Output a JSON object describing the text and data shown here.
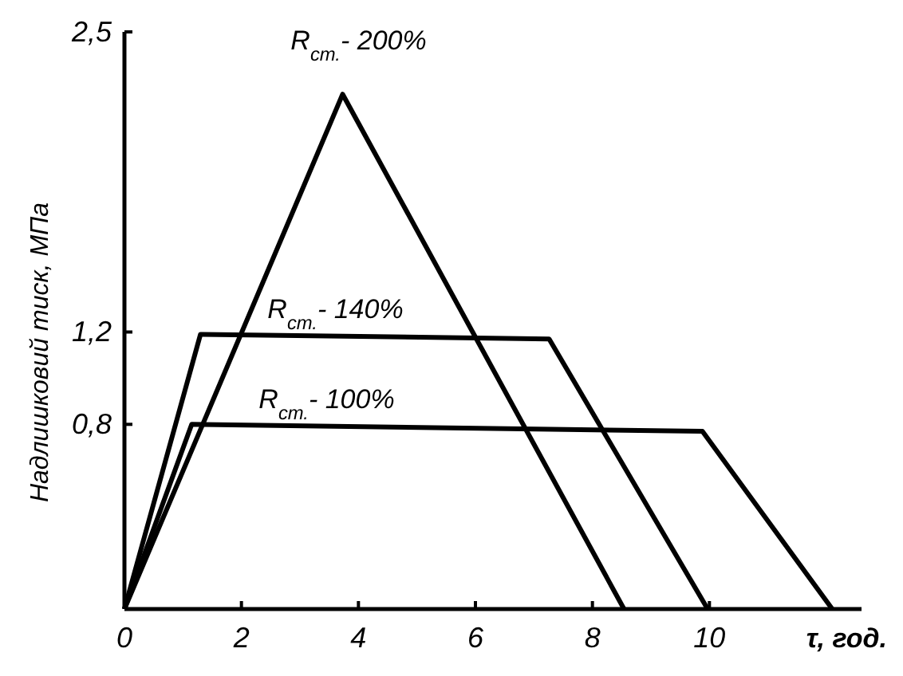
{
  "chart_data": {
    "type": "line",
    "xlabel": "τ, год.",
    "ylabel": "Надлишковий тиск, МПа",
    "xlim": [
      0,
      12.6
    ],
    "ylim": [
      0,
      2.5
    ],
    "xticks": [
      0,
      2,
      4,
      6,
      8,
      10
    ],
    "yticks": [
      {
        "value": 0.8,
        "label": "0,8"
      },
      {
        "value": 1.2,
        "label": "1,2"
      },
      {
        "value": 2.5,
        "label": "2,5"
      }
    ],
    "grid": false,
    "marker": "none",
    "line_style": "solid",
    "series": [
      {
        "name": "R$_{ст.}$- 200%",
        "color": "#000000",
        "x": [
          0,
          3.73,
          8.54
        ],
        "values": [
          0,
          2.23,
          0
        ]
      },
      {
        "name": "R$_{ст.}$- 140%",
        "color": "#000000",
        "x": [
          0,
          1.3,
          7.26,
          9.97
        ],
        "values": [
          0,
          1.19,
          1.17,
          0
        ]
      },
      {
        "name": "R$_{ст.}$- 100%",
        "color": "#000000",
        "x": [
          0,
          1.15,
          9.88,
          12.1
        ],
        "values": [
          0,
          0.8,
          0.77,
          0
        ]
      }
    ]
  }
}
